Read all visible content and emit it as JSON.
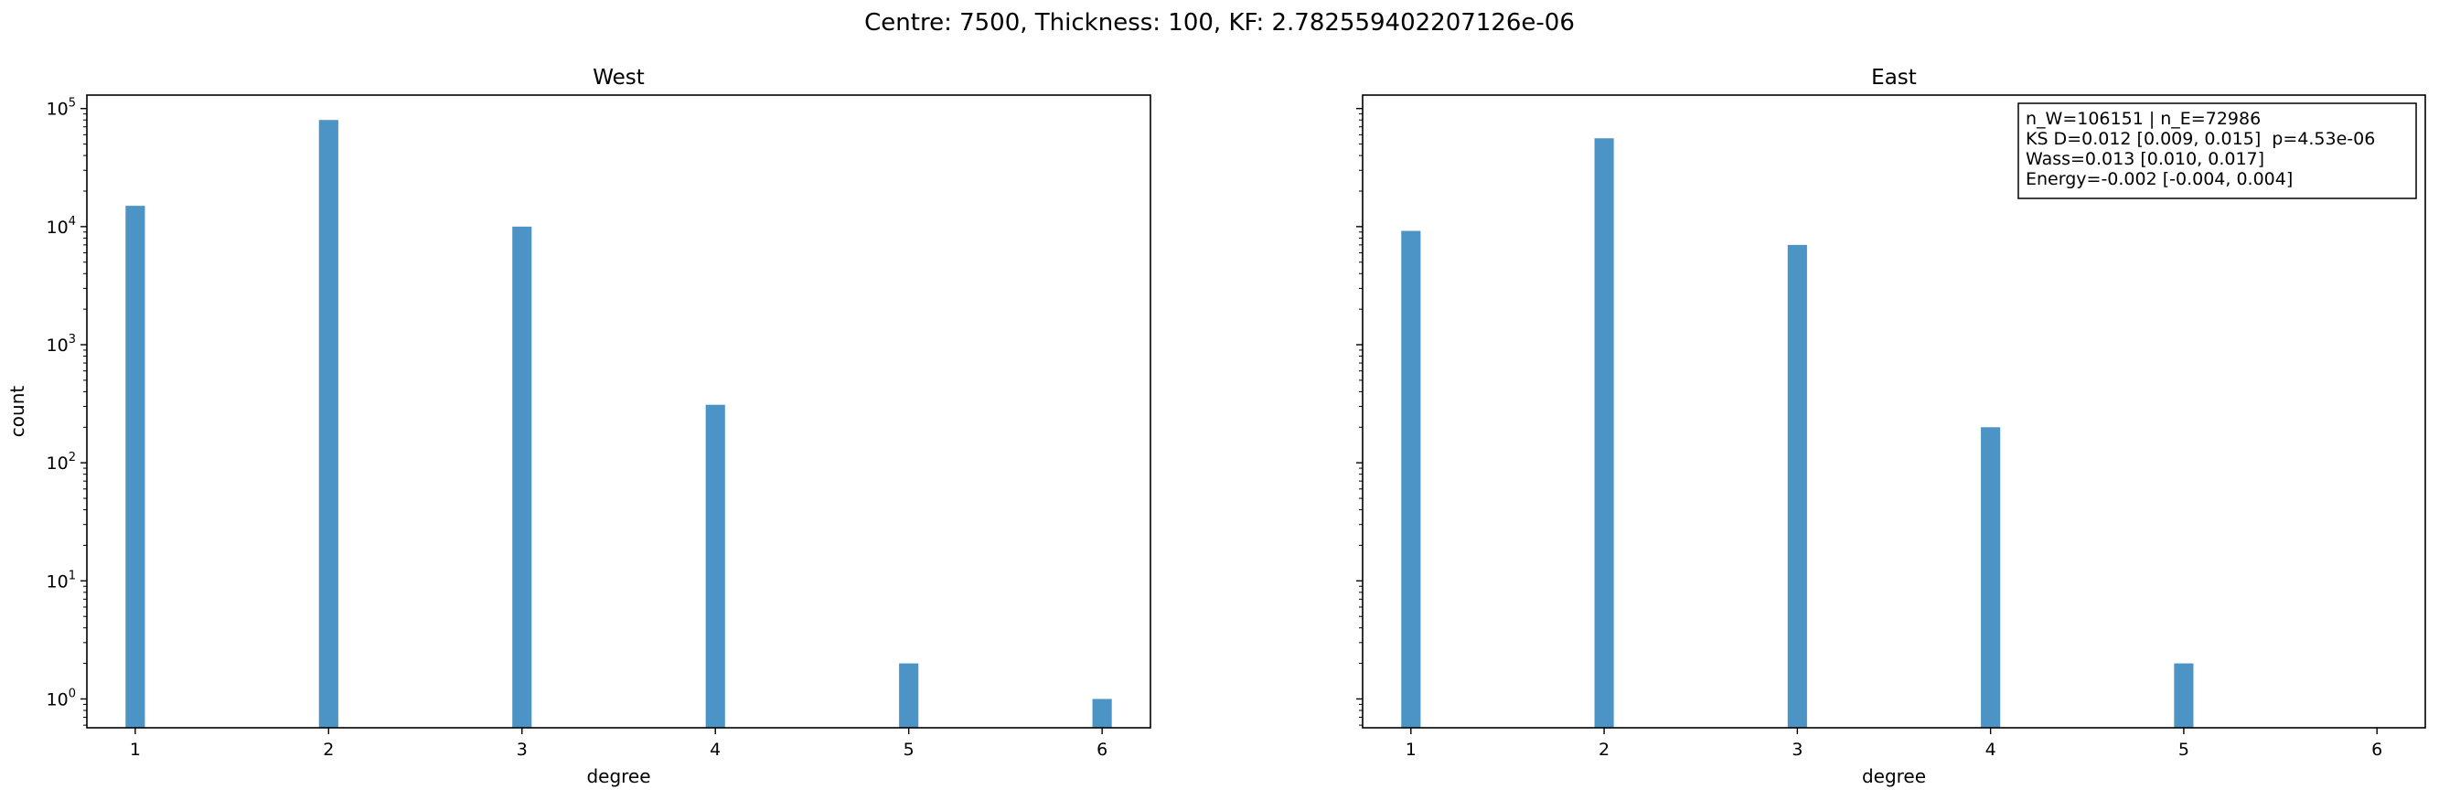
{
  "figure": {
    "suptitle": "Centre: 7500, Thickness: 100, KF: 2.782559402207126e-06"
  },
  "colors": {
    "bar": "#4c94c6",
    "axis": "#000000",
    "background": "#ffffff"
  },
  "chart_data": [
    {
      "type": "bar",
      "title": "West",
      "xlabel": "degree",
      "ylabel": "count",
      "yscale": "log",
      "xlim": [
        0.75,
        6.25
      ],
      "ylim": [
        0.57,
        130000
      ],
      "xticks": [
        1,
        2,
        3,
        4,
        5,
        6
      ],
      "yticks": [
        1,
        10,
        100,
        1000,
        10000,
        100000
      ],
      "ytick_labels": [
        "10^0",
        "10^1",
        "10^2",
        "10^3",
        "10^4",
        "10^5"
      ],
      "x": [
        1,
        2,
        3,
        4,
        5,
        6
      ],
      "values": [
        15000,
        80000,
        10000,
        310,
        2,
        1
      ],
      "grid": false
    },
    {
      "type": "bar",
      "title": "East",
      "xlabel": "degree",
      "ylabel": "",
      "yscale": "log",
      "xlim": [
        0.75,
        6.25
      ],
      "ylim": [
        0.57,
        130000
      ],
      "xticks": [
        1,
        2,
        3,
        4,
        5,
        6
      ],
      "yticks": [
        1,
        10,
        100,
        1000,
        10000,
        100000
      ],
      "ytick_labels": [],
      "x": [
        1,
        2,
        3,
        4,
        5,
        6
      ],
      "values": [
        9200,
        56000,
        7000,
        200,
        2,
        0
      ],
      "grid": false,
      "annotation_lines": [
        "n_W=106151 | n_E=72986",
        "KS D=0.012 [0.009, 0.015]  p=4.53e-06",
        "Wass=0.013 [0.010, 0.017]",
        "Energy=-0.002 [-0.004, 0.004]"
      ]
    }
  ]
}
